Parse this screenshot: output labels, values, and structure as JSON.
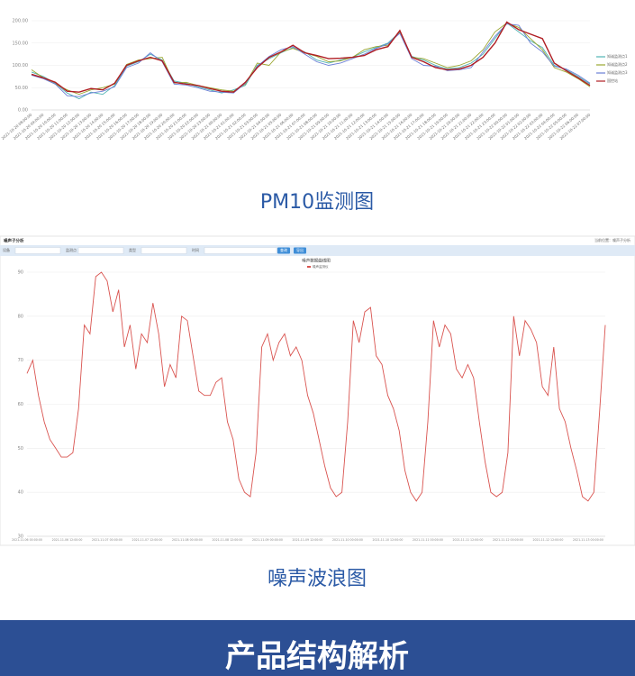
{
  "chart_data": [
    {
      "type": "line",
      "categories": [
        "2021-10-20 08:00:00",
        "2021-10-20 09:00:00",
        "2021-10-20 10:00:00",
        "2021-10-20 11:00:00",
        "2021-10-20 12:00:00",
        "2021-10-20 13:00:00",
        "2021-10-20 14:00:00",
        "2021-10-20 15:00:00",
        "2021-10-20 16:00:00",
        "2021-10-20 17:00:00",
        "2021-10-20 18:00:00",
        "2021-10-20 19:00:00",
        "2021-10-20 20:00:00",
        "2021-10-20 21:00:00",
        "2021-10-20 22:00:00",
        "2021-10-20 23:00:00",
        "2021-10-21 00:00:00",
        "2021-10-21 01:00:00",
        "2021-10-21 02:00:00",
        "2021-10-21 03:00:00",
        "2021-10-21 04:00:00",
        "2021-10-21 05:00:00",
        "2021-10-21 06:00:00",
        "2021-10-21 07:00:00",
        "2021-10-21 08:00:00",
        "2021-10-21 09:00:00",
        "2021-10-21 10:00:00",
        "2021-10-21 11:00:00",
        "2021-10-21 12:00:00",
        "2021-10-21 13:00:00",
        "2021-10-21 14:00:00",
        "2021-10-21 15:00:00",
        "2021-10-21 16:00:00",
        "2021-10-21 17:00:00",
        "2021-10-21 18:00:00",
        "2021-10-21 19:00:00",
        "2021-10-21 20:00:00",
        "2021-10-21 21:00:00",
        "2021-10-21 22:00:00",
        "2021-10-21 23:00:00",
        "2021-10-22 00:00:00",
        "2021-10-22 01:00:00",
        "2021-10-22 02:00:00",
        "2021-10-22 03:00:00",
        "2021-10-22 04:00:00",
        "2021-10-22 05:00:00",
        "2021-10-22 06:00:00",
        "2021-10-22 07:00:00"
      ],
      "series": [
        {
          "name": "知诚监测点1",
          "color": "#4fb3b3",
          "values": [
            85,
            75,
            60,
            38,
            25,
            40,
            35,
            55,
            98,
            108,
            125,
            112,
            65,
            60,
            52,
            45,
            38,
            45,
            55,
            100,
            115,
            128,
            140,
            130,
            112,
            105,
            112,
            118,
            130,
            140,
            150,
            175,
            120,
            112,
            100,
            92,
            95,
            105,
            125,
            160,
            195,
            175,
            155,
            140,
            100,
            90,
            75,
            58
          ]
        },
        {
          "name": "知诚监测点2",
          "color": "#9aa630",
          "values": [
            90,
            72,
            58,
            45,
            35,
            45,
            50,
            58,
            102,
            112,
            115,
            118,
            60,
            62,
            55,
            50,
            45,
            42,
            58,
            105,
            100,
            130,
            138,
            128,
            120,
            108,
            110,
            118,
            135,
            142,
            145,
            175,
            118,
            115,
            105,
            95,
            100,
            110,
            135,
            175,
            195,
            185,
            160,
            135,
            95,
            85,
            70,
            52
          ]
        },
        {
          "name": "知诚监测点3",
          "color": "#6b7fd6",
          "values": [
            78,
            70,
            58,
            32,
            30,
            38,
            42,
            52,
            95,
            105,
            128,
            108,
            58,
            56,
            50,
            42,
            40,
            38,
            60,
            98,
            120,
            135,
            142,
            125,
            108,
            100,
            105,
            115,
            125,
            138,
            148,
            172,
            115,
            100,
            98,
            88,
            90,
            95,
            130,
            165,
            193,
            190,
            150,
            130,
            98,
            92,
            78,
            60
          ]
        },
        {
          "name": "国控站",
          "color": "#b01e23",
          "values": [
            80,
            72,
            62,
            42,
            40,
            48,
            45,
            60,
            100,
            110,
            118,
            110,
            62,
            58,
            55,
            48,
            42,
            40,
            62,
            95,
            118,
            130,
            145,
            128,
            122,
            115,
            116,
            118,
            122,
            135,
            142,
            178,
            118,
            108,
            95,
            90,
            92,
            100,
            118,
            150,
            197,
            180,
            170,
            160,
            105,
            88,
            72,
            55
          ]
        }
      ],
      "ylim": [
        0,
        200
      ],
      "yticks": [
        {
          "value": 0,
          "label": "0.00"
        },
        {
          "value": 50,
          "label": "50.00"
        },
        {
          "value": 100,
          "label": "100.00"
        },
        {
          "value": 150,
          "label": "150.00"
        },
        {
          "value": 200,
          "label": "200.00"
        }
      ],
      "grid": true,
      "legend": "right"
    },
    {
      "type": "line",
      "title": "噪声数据曲线图",
      "categories": [
        "2021-11-06 00:00:00",
        null,
        null,
        null,
        null,
        null,
        null,
        "2021-11-06 12:00:00",
        null,
        null,
        null,
        null,
        null,
        null,
        "2021-11-07 00:00:00",
        null,
        null,
        null,
        null,
        null,
        null,
        "2021-11-07 12:00:00",
        null,
        null,
        null,
        null,
        null,
        null,
        "2021-11-08 00:00:00",
        null,
        null,
        null,
        null,
        null,
        null,
        "2021-11-08 12:00:00",
        null,
        null,
        null,
        null,
        null,
        null,
        "2021-11-09 00:00:00",
        null,
        null,
        null,
        null,
        null,
        null,
        "2021-11-09 12:00:00",
        null,
        null,
        null,
        null,
        null,
        null,
        "2021-11-10 00:00:00",
        null,
        null,
        null,
        null,
        null,
        null,
        "2021-11-10 12:00:00",
        null,
        null,
        null,
        null,
        null,
        null,
        "2021-11-11 00:00:00",
        null,
        null,
        null,
        null,
        null,
        null,
        "2021-11-11 12:00:00",
        null,
        null,
        null,
        null,
        null,
        null,
        "2021-11-12 00:00:00",
        null,
        null,
        null,
        null,
        null,
        null,
        "2021-11-12 12:00:00",
        null,
        null,
        null,
        null,
        null,
        null,
        "2021-11-13 00:00:00",
        null,
        null,
        null
      ],
      "series": [
        {
          "name": "噪声监测仪",
          "color": "#d9534f",
          "values": [
            67,
            70,
            62,
            56,
            52,
            50,
            48,
            48,
            49,
            59,
            78,
            76,
            89,
            90,
            88,
            81,
            86,
            73,
            78,
            68,
            76,
            74,
            83,
            76,
            64,
            69,
            66,
            80,
            79,
            71,
            63,
            62,
            62,
            65,
            66,
            56,
            52,
            43,
            40,
            39,
            49,
            73,
            76,
            70,
            74,
            76,
            71,
            73,
            70,
            62,
            58,
            52,
            46,
            41,
            39,
            40,
            56,
            79,
            74,
            81,
            82,
            71,
            69,
            62,
            59,
            54,
            45,
            40,
            38,
            40,
            56,
            79,
            73,
            78,
            76,
            68,
            66,
            69,
            66,
            56,
            47,
            40,
            39,
            40,
            49,
            80,
            71,
            79,
            77,
            74,
            64,
            62,
            73,
            59,
            56,
            50,
            45,
            39,
            38,
            40,
            58,
            78
          ]
        }
      ],
      "ylim": [
        30,
        90
      ],
      "yticks": [
        30,
        40,
        50,
        60,
        70,
        80,
        90
      ],
      "grid": true,
      "legend": "top"
    }
  ],
  "captions": [
    "PM10监测图",
    "噪声波浪图"
  ],
  "noise_panel": {
    "header": "噪声子分析",
    "breadcrumb": "当前位置：噪声子分析",
    "filters": [
      "设备",
      "监测点",
      "类型",
      "时间"
    ],
    "buttons": [
      "查询",
      "导出"
    ]
  },
  "banner": "产品结构解析"
}
